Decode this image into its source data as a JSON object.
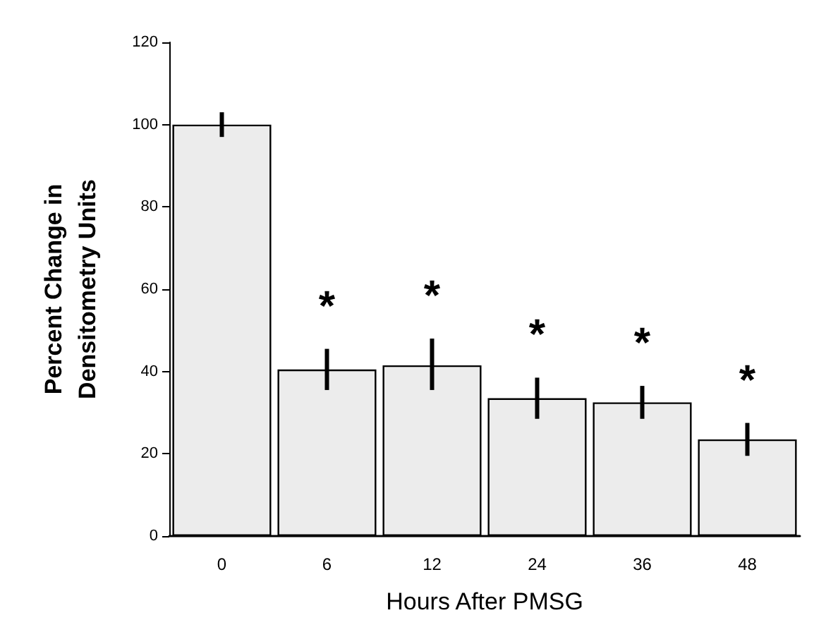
{
  "chart_data": {
    "type": "bar",
    "xlabel": "Hours After PMSG",
    "ylabel": "Percent Change in Densitometry Units",
    "categories": [
      "0",
      "6",
      "12",
      "24",
      "36",
      "48"
    ],
    "values": [
      100,
      40.5,
      41.5,
      33.5,
      32.5,
      23.5
    ],
    "errors": [
      3,
      5,
      [
        35.5,
        48
      ],
      5,
      4,
      4
    ],
    "color": "#ececec",
    "ylim": [
      0,
      120
    ],
    "yticks": [
      0,
      20,
      40,
      60,
      80,
      100,
      120
    ],
    "grid": false,
    "annotations": [
      {
        "text": "*",
        "x": "6",
        "y": 45.5
      },
      {
        "text": "*",
        "x": "12",
        "y": 48
      },
      {
        "text": "*",
        "x": "24",
        "y": 38.5
      },
      {
        "text": "*",
        "x": "36",
        "y": 36.5
      },
      {
        "text": "*",
        "x": "48",
        "y": 27.5
      }
    ]
  }
}
